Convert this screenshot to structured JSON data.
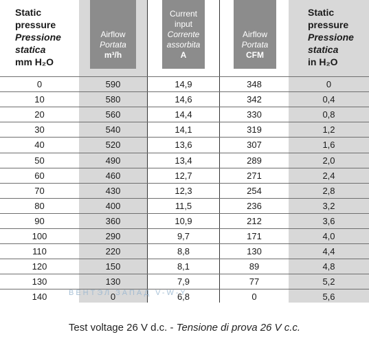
{
  "headers": {
    "static_pressure_mm": {
      "en1": "Static",
      "en2": "pressure",
      "it1": "Pressione",
      "it2": "statica",
      "unit": "mm H₂O"
    },
    "airflow_m3h": {
      "en": "Airflow",
      "it": "Portata",
      "unit": "m³/h"
    },
    "current": {
      "en1": "Current",
      "en2": "input",
      "it1": "Corrente",
      "it2": "assorbita",
      "unit": "A"
    },
    "airflow_cfm": {
      "en": "Airflow",
      "it": "Portata",
      "unit": "CFM"
    },
    "static_pressure_in": {
      "en1": "Static",
      "en2": "pressure",
      "it1": "Pressione",
      "it2": "statica",
      "unit": "in H₂O"
    }
  },
  "rows": [
    [
      "0",
      "590",
      "14,9",
      "348",
      "0"
    ],
    [
      "10",
      "580",
      "14,6",
      "342",
      "0,4"
    ],
    [
      "20",
      "560",
      "14,4",
      "330",
      "0,8"
    ],
    [
      "30",
      "540",
      "14,1",
      "319",
      "1,2"
    ],
    [
      "40",
      "520",
      "13,6",
      "307",
      "1,6"
    ],
    [
      "50",
      "490",
      "13,4",
      "289",
      "2,0"
    ],
    [
      "60",
      "460",
      "12,7",
      "271",
      "2,4"
    ],
    [
      "70",
      "430",
      "12,3",
      "254",
      "2,8"
    ],
    [
      "80",
      "400",
      "11,5",
      "236",
      "3,2"
    ],
    [
      "90",
      "360",
      "10,9",
      "212",
      "3,6"
    ],
    [
      "100",
      "290",
      "9,7",
      "171",
      "4,0"
    ],
    [
      "110",
      "220",
      "8,8",
      "130",
      "4,4"
    ],
    [
      "120",
      "150",
      "8,1",
      "89",
      "4,8"
    ],
    [
      "130",
      "130",
      "7,9",
      "77",
      "5,2"
    ],
    [
      "140",
      "0",
      "6,8",
      "0",
      "5,6"
    ]
  ],
  "watermark": "ВЕНТЭЛ  ЗАПАД      V-W-Y",
  "footer": {
    "en": "Test voltage 26 V d.c. - ",
    "it": "Tensione di prova 26 V c.c."
  }
}
